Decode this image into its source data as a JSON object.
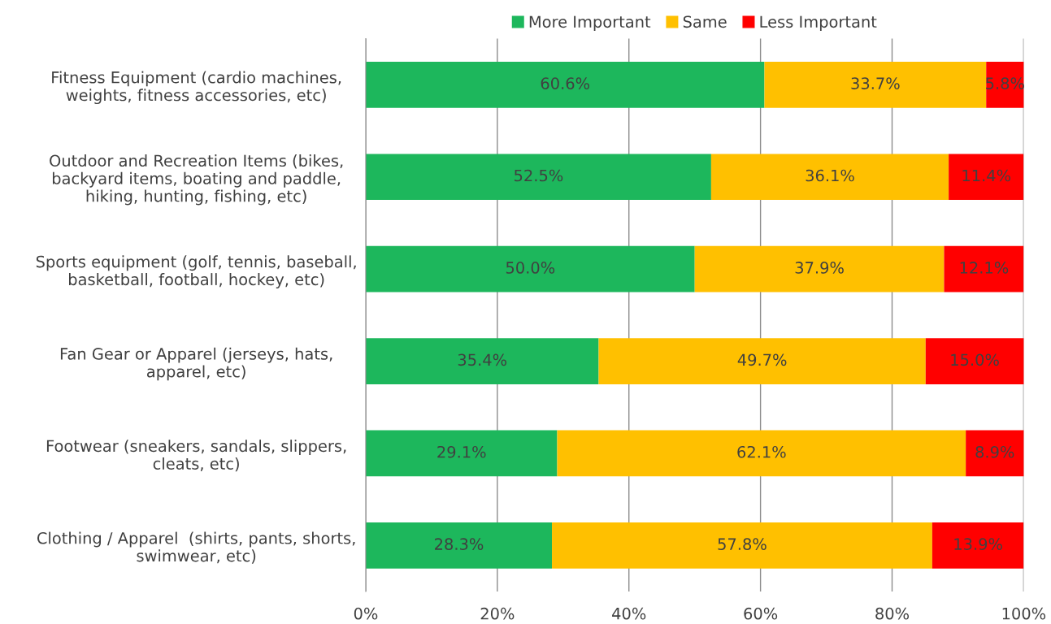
{
  "chart_data": {
    "type": "bar",
    "orientation": "horizontal",
    "stacked": true,
    "categories": [
      "Fitness Equipment (cardio machines,\nweights, fitness accessories, etc)",
      "Outdoor and Recreation Items (bikes,\nbackyard items, boating and paddle,\nhiking, hunting, fishing, etc)",
      "Sports equipment (golf, tennis, baseball,\nbasketball, football, hockey, etc)",
      "Fan Gear or Apparel (jerseys, hats,\napparel, etc)",
      "Footwear (sneakers, sandals, slippers,\ncleats, etc)",
      "Clothing / Apparel  (shirts, pants, shorts,\nswimwear, etc)"
    ],
    "series": [
      {
        "name": "More Important",
        "color": "#1db75c",
        "values": [
          60.6,
          52.5,
          50.0,
          35.4,
          29.1,
          28.3
        ],
        "value_labels": [
          "60.6%",
          "52.5%",
          "50.0%",
          "35.4%",
          "29.1%",
          "28.3%"
        ]
      },
      {
        "name": "Same",
        "color": "#ffc000",
        "values": [
          33.7,
          36.1,
          37.9,
          49.7,
          62.1,
          57.8
        ],
        "value_labels": [
          "33.7%",
          "36.1%",
          "37.9%",
          "49.7%",
          "62.1%",
          "57.8%"
        ]
      },
      {
        "name": "Less Important",
        "color": "#ff0000",
        "values": [
          5.8,
          11.4,
          12.1,
          15.0,
          8.9,
          13.9
        ],
        "value_labels": [
          "5.8%",
          "11.4%",
          "12.1%",
          "15.0%",
          "8.9%",
          "13.9%"
        ]
      }
    ],
    "xlim": [
      0,
      100
    ],
    "xticks": [
      {
        "value": 0,
        "label": "0%"
      },
      {
        "value": 20,
        "label": "20%"
      },
      {
        "value": 40,
        "label": "40%"
      },
      {
        "value": 60,
        "label": "60%"
      },
      {
        "value": 80,
        "label": "80%"
      },
      {
        "value": 100,
        "label": "100%"
      }
    ],
    "grid": "x",
    "legend": "top"
  }
}
